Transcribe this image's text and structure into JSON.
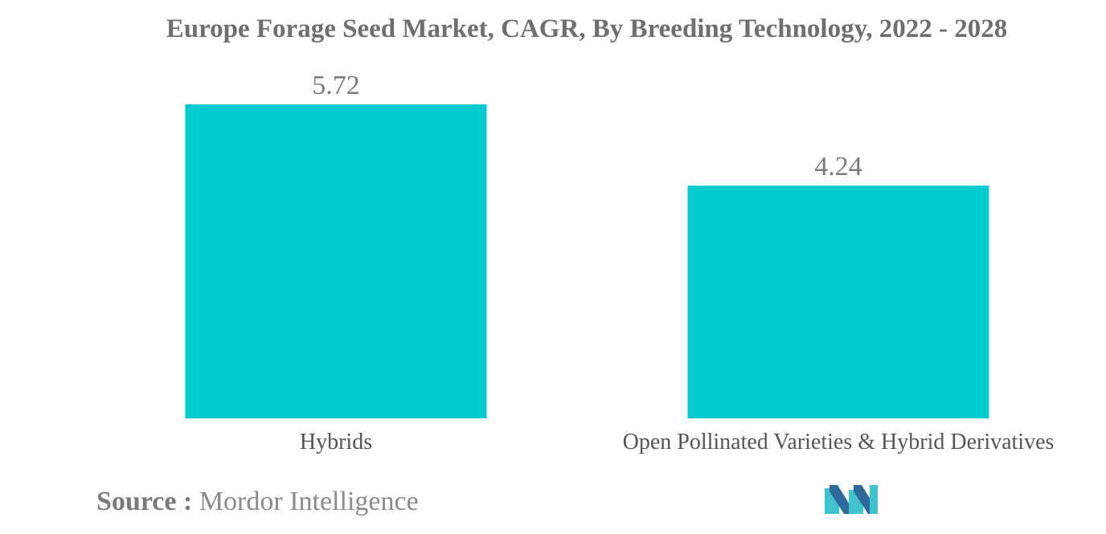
{
  "chart_data": {
    "type": "bar",
    "title": "Europe Forage Seed Market, CAGR, By Breeding Technology, 2022 - 2028",
    "categories": [
      "Hybrids",
      "Open Pollinated Varieties & Hybrid Derivatives"
    ],
    "values": [
      5.72,
      4.24
    ],
    "data_labels": [
      "5.72",
      "4.24"
    ],
    "xlabel": "",
    "ylabel": "",
    "ylim": [
      0,
      5.72
    ],
    "grid": false,
    "legend": "none",
    "bar_color": "#00ccd0",
    "value_label_color": "#7a7a7a",
    "category_label_color": "#555555"
  },
  "source": {
    "label": "Source :",
    "text": "Mordor Intelligence"
  },
  "logo": {
    "icon": "mordor-intelligence-logo-icon",
    "colors": [
      "#2e6a9c",
      "#3fc3cf"
    ]
  }
}
